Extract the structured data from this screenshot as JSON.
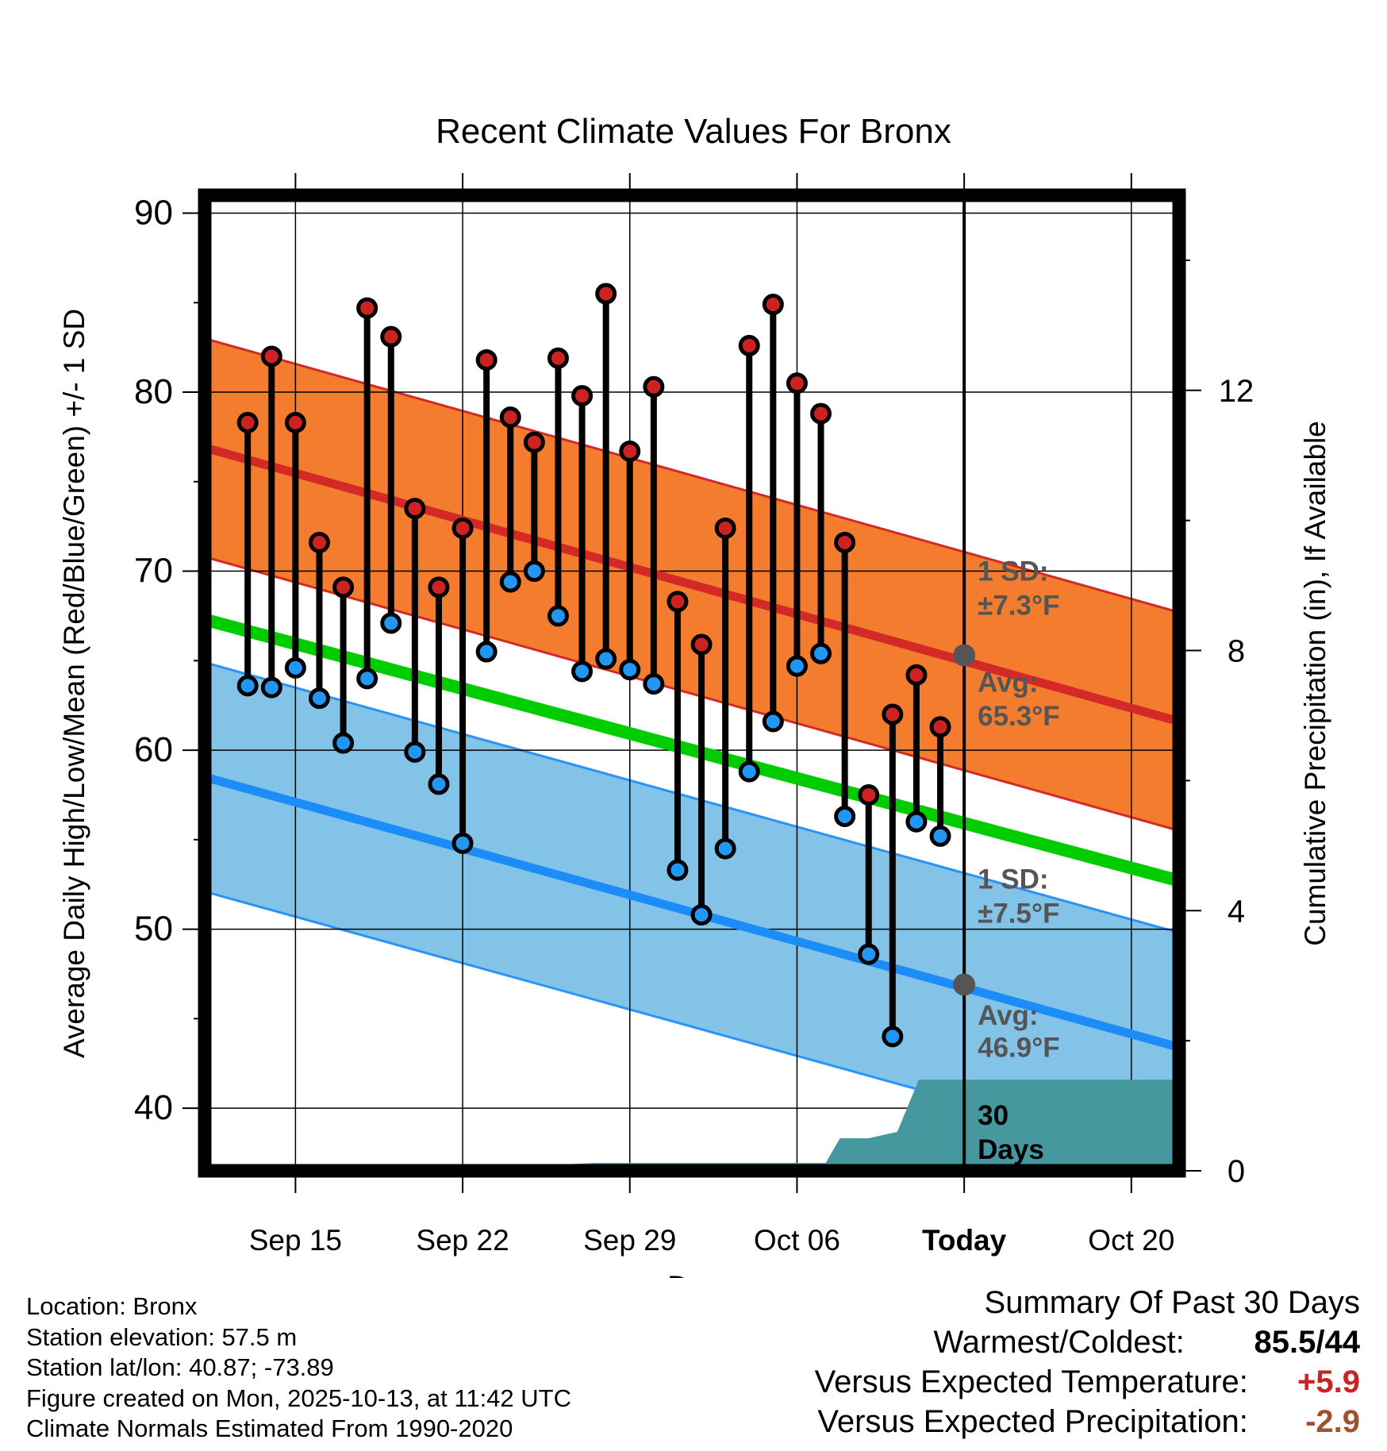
{
  "chart_data": {
    "type": "line",
    "title": "Recent Climate Values For Bronx",
    "xlabel": "Day",
    "ylabel": "Average Daily High/Low/Mean (Red/Blue/Green) +/- 1 SD",
    "y2label": "Cumulative Precipitation (in), If Available",
    "ylim": [
      36.5,
      91
    ],
    "yticks": [
      "40",
      "50",
      "60",
      "70",
      "80",
      "90"
    ],
    "y2lim": [
      0,
      15
    ],
    "y2ticks": [
      "0",
      "4",
      "8",
      "12"
    ],
    "xlim": [
      11.2,
      52.0
    ],
    "xtick_positions": [
      15,
      22,
      29,
      36,
      43,
      50
    ],
    "xtick_labels": [
      "Sep 15",
      "Sep 22",
      "Sep 29",
      "Oct 06",
      "Today",
      "Oct 20"
    ],
    "today": 43,
    "normals": {
      "high_avg_start": 76.9,
      "high_avg_end": 61.6,
      "high_sd": 6.1,
      "low_avg_start": 58.5,
      "low_avg_end": 43.4,
      "low_sd": 6.4,
      "mean_start": 67.3,
      "mean_end": 52.7
    },
    "days": [
      13,
      14,
      15,
      16,
      17,
      18,
      19,
      20,
      21,
      22,
      23,
      24,
      25,
      26,
      27,
      28,
      29,
      30,
      31,
      32,
      33,
      34,
      35,
      36,
      37,
      38,
      39,
      40,
      41,
      42
    ],
    "high": [
      78.3,
      82.0,
      78.3,
      71.6,
      69.1,
      84.7,
      83.1,
      73.5,
      69.1,
      72.4,
      81.8,
      78.6,
      77.2,
      81.9,
      79.8,
      85.5,
      76.7,
      80.3,
      68.3,
      65.9,
      72.4,
      82.6,
      84.9,
      80.5,
      78.8,
      71.6,
      57.5,
      62.0,
      64.2,
      61.3
    ],
    "low": [
      63.6,
      63.5,
      64.6,
      62.9,
      60.4,
      64.0,
      67.1,
      59.9,
      58.1,
      54.8,
      65.5,
      69.4,
      70.0,
      67.5,
      64.4,
      65.1,
      64.5,
      63.7,
      53.3,
      50.8,
      54.5,
      58.8,
      61.6,
      64.7,
      65.4,
      56.3,
      48.6,
      44.0,
      56.0,
      55.2
    ],
    "precip": {
      "days": [
        11.2,
        21.5,
        22.8,
        25.4,
        26.4,
        27.5,
        35.4,
        36.9,
        37.2,
        37.8,
        39.0,
        40.2,
        41.1,
        41.4,
        52.0
      ],
      "values": [
        0,
        0,
        0.05,
        0.05,
        0.1,
        0.12,
        0.12,
        0.12,
        0.12,
        0.5,
        0.5,
        0.6,
        1.4,
        1.4,
        1.4
      ]
    },
    "annotations": {
      "high_sd_line1": "1 SD:",
      "high_sd_line2": "±7.3°F",
      "high_avg_line1": "Avg:",
      "high_avg_line2": "65.3°F",
      "today_high_avg": 65.3,
      "low_sd_line1": "1 SD:",
      "low_sd_line2": "±7.5°F",
      "low_avg_line1": "Avg:",
      "low_avg_line2": "46.9°F",
      "today_low_avg": 46.9,
      "precip_line1": "30",
      "precip_line2": "Days"
    },
    "colors": {
      "high_band": "#f47c2e",
      "high_line": "#d42a27",
      "low_band": "#84c3e8",
      "low_line": "#1c8cf8",
      "low_band_edge": "#2a93f7",
      "mean_line": "#00cc00",
      "precip": "#45999e",
      "high_marker": "#cc2222",
      "low_marker": "#2196f3",
      "annotation": "#555555"
    }
  },
  "info": {
    "location": "Location: Bronx",
    "elevation": "Station elevation: 57.5 m",
    "latlon": "Station lat/lon: 40.87; -73.89",
    "created": "Figure created on Mon, 2025-10-13, at 11:42 UTC",
    "normals": "Climate Normals Estimated From 1990-2020"
  },
  "summary": {
    "title": "Summary Of Past 30 Days",
    "warm_cold_label": "Warmest/Coldest:",
    "warm_cold_value": "85.5/44",
    "temp_label": "Versus Expected Temperature:",
    "temp_value": "+5.9",
    "temp_color": "#cc2222",
    "precip_label": "Versus Expected Precipitation:",
    "precip_value": "-2.9",
    "precip_color": "#a0522d"
  }
}
